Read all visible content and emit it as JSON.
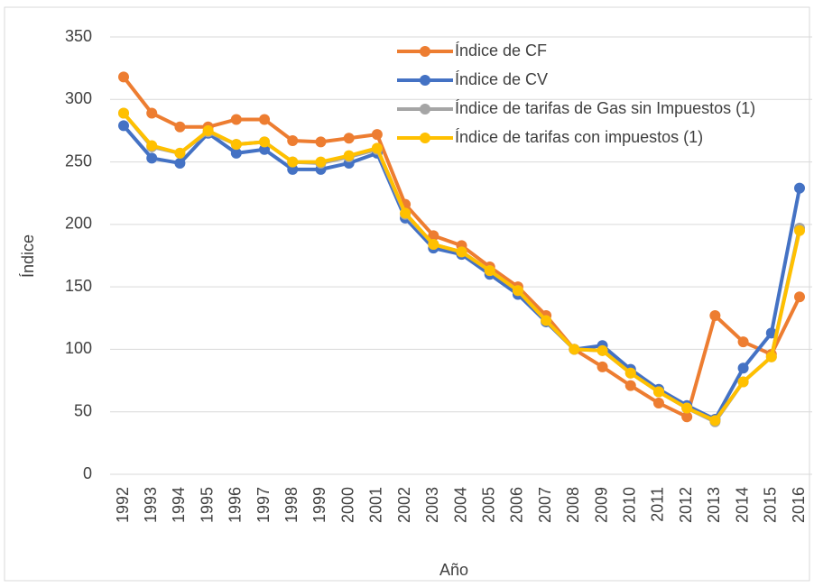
{
  "chart_data": {
    "type": "line",
    "x_label": "Año",
    "y_label": "Índice",
    "categories": [
      "1992",
      "1993",
      "1994",
      "1995",
      "1996",
      "1997",
      "1998",
      "1999",
      "2000",
      "2001",
      "2002",
      "2003",
      "2004",
      "2005",
      "2006",
      "2007",
      "2008",
      "2009",
      "2010",
      "2011",
      "2012",
      "2013",
      "2014",
      "2015",
      "2016"
    ],
    "series": [
      {
        "name": "Índice de CF",
        "color": "#ed7d31",
        "values": [
          318,
          289,
          278,
          278,
          284,
          284,
          267,
          266,
          269,
          272,
          216,
          191,
          183,
          166,
          150,
          127,
          100,
          86,
          71,
          57,
          46,
          127,
          106,
          96,
          142
        ]
      },
      {
        "name": "Índice de CV",
        "color": "#4472c4",
        "values": [
          279,
          253,
          249,
          273,
          257,
          260,
          244,
          244,
          249,
          257,
          205,
          181,
          176,
          160,
          144,
          122,
          100,
          103,
          84,
          68,
          55,
          44,
          85,
          113,
          229
        ]
      },
      {
        "name": "Índice de tarifas de Gas sin Impuestos (1)",
        "color": "#a5a5a5",
        "values": [
          289,
          262,
          257,
          274,
          264,
          266,
          250,
          249,
          254,
          260,
          208,
          184,
          178,
          163,
          147,
          123,
          100,
          99,
          81,
          66,
          53,
          42,
          74,
          94,
          197
        ]
      },
      {
        "name": "Índice de tarifas con impuestos (1)",
        "color": "#ffc000",
        "values": [
          289,
          263,
          257,
          275,
          264,
          266,
          250,
          250,
          255,
          261,
          209,
          184,
          178,
          163,
          147,
          123,
          100,
          99,
          81,
          66,
          53,
          43,
          74,
          94,
          195
        ]
      }
    ],
    "ylim": [
      0,
      350
    ],
    "yticks": [
      0,
      50,
      100,
      150,
      200,
      250,
      300,
      350
    ],
    "grid": true,
    "legend": "top-right"
  }
}
